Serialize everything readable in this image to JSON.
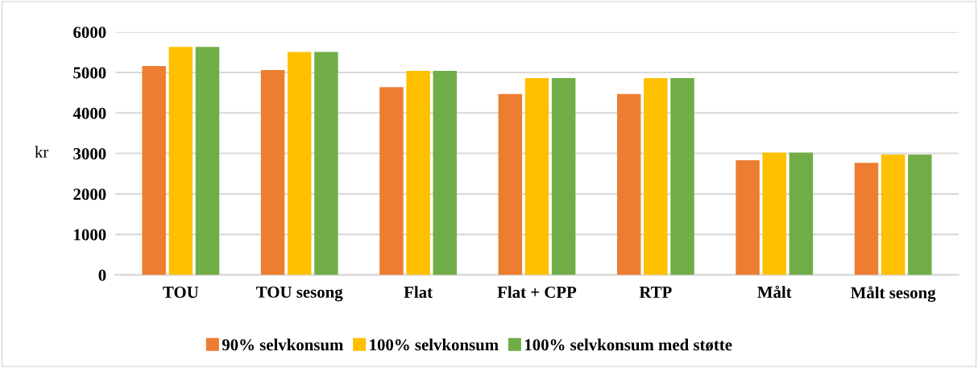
{
  "chart_data": {
    "type": "bar",
    "ylabel": "kr",
    "categories": [
      "TOU",
      "TOU sesong",
      "Flat",
      "Flat + CPP",
      "RTP",
      "Målt",
      "Målt sesong"
    ],
    "series": [
      {
        "name": "90% selvkonsum",
        "color": "#ed7d31",
        "values": [
          5160,
          5060,
          4640,
          4470,
          4470,
          2830,
          2770
        ]
      },
      {
        "name": "100% selvkonsum",
        "color": "#ffc000",
        "values": [
          5630,
          5510,
          5040,
          4860,
          4860,
          3020,
          2970
        ]
      },
      {
        "name": "100% selvkonsum med støtte",
        "color": "#70ad47",
        "values": [
          5630,
          5510,
          5040,
          4860,
          4860,
          3020,
          2970
        ]
      }
    ],
    "ylim": [
      0,
      6000
    ],
    "yticks": [
      0,
      1000,
      2000,
      3000,
      4000,
      5000,
      6000
    ],
    "grid": "y",
    "legend": "bottom"
  }
}
